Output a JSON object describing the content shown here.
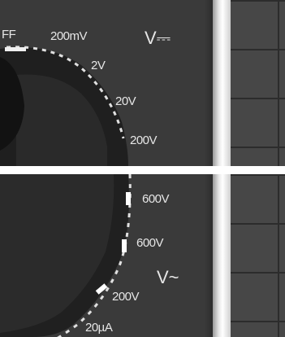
{
  "top": {
    "off_label": "FF",
    "labels": [
      "200mV",
      "2V",
      "20V",
      "200V"
    ],
    "mode_symbol": "V⎓"
  },
  "bottom": {
    "labels": [
      "600V",
      "600V",
      "200V",
      "20µA"
    ],
    "mode_symbol": "V~"
  }
}
